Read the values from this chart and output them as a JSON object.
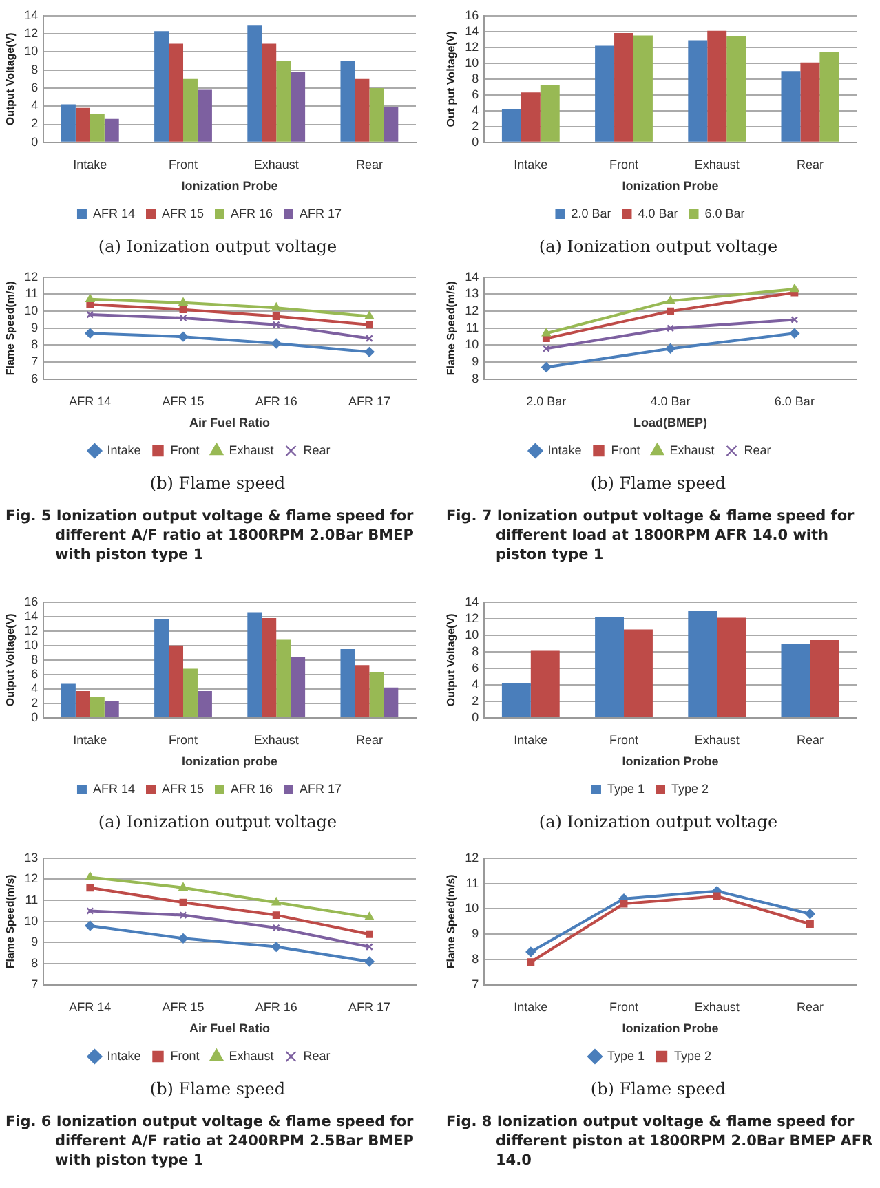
{
  "chart_data": [
    {
      "type": "bar",
      "categories": [
        "Intake",
        "Front",
        "Exhaust",
        "Rear"
      ],
      "xlabel": "Ionization Probe",
      "ylabel": "Output Voltage(V)",
      "ylim": [
        0,
        14
      ],
      "yticks": [
        0,
        2,
        4,
        6,
        8,
        10,
        12,
        14
      ],
      "grid": "y",
      "legend": "bottom",
      "series": [
        {
          "name": "AFR 14",
          "color": "#4a7ebb",
          "values": [
            4.2,
            12.3,
            12.9,
            9.0
          ]
        },
        {
          "name": "AFR 15",
          "color": "#be4b48",
          "values": [
            3.8,
            10.9,
            10.9,
            7.0
          ]
        },
        {
          "name": "AFR 16",
          "color": "#98b954",
          "values": [
            3.1,
            7.0,
            9.0,
            6.0
          ]
        },
        {
          "name": "AFR 17",
          "color": "#7d60a0",
          "values": [
            2.6,
            5.8,
            7.8,
            3.9
          ]
        }
      ],
      "annotations": [
        "(a) Ionization output voltage"
      ]
    },
    {
      "type": "bar",
      "categories": [
        "Intake",
        "Front",
        "Exhaust",
        "Rear"
      ],
      "xlabel": "Ionization Probe",
      "ylabel": "Out put Voltage(V)",
      "ylim": [
        0,
        16
      ],
      "yticks": [
        0,
        2,
        4,
        6,
        8,
        10,
        12,
        14,
        16
      ],
      "grid": "y",
      "legend": "bottom",
      "series": [
        {
          "name": "2.0 Bar",
          "color": "#4a7ebb",
          "values": [
            4.2,
            12.2,
            12.9,
            9.0
          ]
        },
        {
          "name": "4.0 Bar",
          "color": "#be4b48",
          "values": [
            6.3,
            13.8,
            14.1,
            10.1
          ]
        },
        {
          "name": "6.0 Bar",
          "color": "#98b954",
          "values": [
            7.2,
            13.5,
            13.4,
            11.4
          ]
        }
      ],
      "annotations": [
        "(a) Ionization output voltage"
      ]
    },
    {
      "type": "line",
      "categories": [
        "AFR 14",
        "AFR 15",
        "AFR 16",
        "AFR 17"
      ],
      "xlabel": "Air Fuel Ratio",
      "ylabel": "Flame Speed(m/s)",
      "ylim": [
        6,
        12
      ],
      "yticks": [
        6,
        7,
        8,
        9,
        10,
        11,
        12
      ],
      "grid": "y",
      "legend": "bottom",
      "series": [
        {
          "name": "Intake",
          "color": "#4a7ebb",
          "marker": "diamond",
          "values": [
            8.7,
            8.5,
            8.1,
            7.6
          ]
        },
        {
          "name": "Front",
          "color": "#be4b48",
          "marker": "square",
          "values": [
            10.4,
            10.1,
            9.7,
            9.2
          ]
        },
        {
          "name": "Exhaust",
          "color": "#98b954",
          "marker": "triangle",
          "values": [
            10.7,
            10.5,
            10.2,
            9.7
          ]
        },
        {
          "name": "Rear",
          "color": "#7d60a0",
          "marker": "cross",
          "values": [
            9.8,
            9.6,
            9.2,
            8.4
          ]
        }
      ],
      "annotations": [
        "(b) Flame speed",
        "Fig. 5 Ionization output voltage & flame speed for different A/F ratio at 1800RPM 2.0Bar BMEP with piston type 1"
      ]
    },
    {
      "type": "line",
      "categories": [
        "2.0 Bar",
        "4.0 Bar",
        "6.0 Bar"
      ],
      "xlabel": "Load(BMEP)",
      "ylabel": "Flame Speed(m/s)",
      "ylim": [
        8,
        14
      ],
      "yticks": [
        8,
        9,
        10,
        11,
        12,
        13,
        14
      ],
      "grid": "y",
      "legend": "bottom",
      "series": [
        {
          "name": "Intake",
          "color": "#4a7ebb",
          "marker": "diamond",
          "values": [
            8.7,
            9.8,
            10.7
          ]
        },
        {
          "name": "Front",
          "color": "#be4b48",
          "marker": "square",
          "values": [
            10.4,
            12.0,
            13.1
          ]
        },
        {
          "name": "Exhaust",
          "color": "#98b954",
          "marker": "triangle",
          "values": [
            10.7,
            12.6,
            13.3
          ]
        },
        {
          "name": "Rear",
          "color": "#7d60a0",
          "marker": "cross",
          "values": [
            9.8,
            11.0,
            11.5
          ]
        }
      ],
      "annotations": [
        "(b) Flame speed",
        "Fig. 7 Ionization output voltage & flame speed for different load at 1800RPM AFR 14.0 with piston type 1"
      ]
    },
    {
      "type": "bar",
      "categories": [
        "Intake",
        "Front",
        "Exhaust",
        "Rear"
      ],
      "xlabel": "Ionization probe",
      "ylabel": "Output Voltage(V)",
      "ylim": [
        0,
        16
      ],
      "yticks": [
        0,
        2,
        4,
        6,
        8,
        10,
        12,
        14,
        16
      ],
      "grid": "y",
      "legend": "bottom",
      "series": [
        {
          "name": "AFR 14",
          "color": "#4a7ebb",
          "values": [
            4.7,
            13.6,
            14.6,
            9.5
          ]
        },
        {
          "name": "AFR 15",
          "color": "#be4b48",
          "values": [
            3.7,
            10.0,
            13.8,
            7.3
          ]
        },
        {
          "name": "AFR 16",
          "color": "#98b954",
          "values": [
            2.9,
            6.8,
            10.8,
            6.3
          ]
        },
        {
          "name": "AFR 17",
          "color": "#7d60a0",
          "values": [
            2.3,
            3.7,
            8.4,
            4.2
          ]
        }
      ],
      "annotations": [
        "(a) Ionization output voltage"
      ]
    },
    {
      "type": "bar",
      "categories": [
        "Intake",
        "Front",
        "Exhaust",
        "Rear"
      ],
      "xlabel": "Ionization Probe",
      "ylabel": "Output Voltage(V)",
      "ylim": [
        0,
        14
      ],
      "yticks": [
        0,
        2,
        4,
        6,
        8,
        10,
        12,
        14
      ],
      "grid": "y",
      "legend": "bottom",
      "series": [
        {
          "name": "Type 1",
          "color": "#4a7ebb",
          "values": [
            4.2,
            12.2,
            12.9,
            8.9
          ]
        },
        {
          "name": "Type 2",
          "color": "#be4b48",
          "values": [
            8.1,
            10.7,
            12.1,
            9.4
          ]
        }
      ],
      "annotations": [
        "(a) Ionization output voltage"
      ]
    },
    {
      "type": "line",
      "categories": [
        "AFR 14",
        "AFR 15",
        "AFR 16",
        "AFR 17"
      ],
      "xlabel": "Air Fuel Ratio",
      "ylabel": "Flame Speed(m/s)",
      "ylim": [
        7,
        13
      ],
      "yticks": [
        7,
        8,
        9,
        10,
        11,
        12,
        13
      ],
      "grid": "y",
      "legend": "bottom",
      "series": [
        {
          "name": "Intake",
          "color": "#4a7ebb",
          "marker": "diamond",
          "values": [
            9.8,
            9.2,
            8.8,
            8.1
          ]
        },
        {
          "name": "Front",
          "color": "#be4b48",
          "marker": "square",
          "values": [
            11.6,
            10.9,
            10.3,
            9.4
          ]
        },
        {
          "name": "Exhaust",
          "color": "#98b954",
          "marker": "triangle",
          "values": [
            12.1,
            11.6,
            10.9,
            10.2
          ]
        },
        {
          "name": "Rear",
          "color": "#7d60a0",
          "marker": "cross",
          "values": [
            10.5,
            10.3,
            9.7,
            8.8
          ]
        }
      ],
      "annotations": [
        "(b) Flame speed",
        "Fig. 6 Ionization output voltage & flame speed for different A/F ratio at 2400RPM 2.5Bar BMEP with piston type 1"
      ]
    },
    {
      "type": "line",
      "categories": [
        "Intake",
        "Front",
        "Exhaust",
        "Rear"
      ],
      "xlabel": "Ionization Probe",
      "ylabel": "Flame Speed(m/s)",
      "ylim": [
        7,
        12
      ],
      "yticks": [
        7,
        8,
        9,
        10,
        11,
        12
      ],
      "grid": "y",
      "legend": "bottom",
      "series": [
        {
          "name": "Type 1",
          "color": "#4a7ebb",
          "marker": "diamond",
          "values": [
            8.3,
            10.4,
            10.7,
            9.8
          ]
        },
        {
          "name": "Type 2",
          "color": "#be4b48",
          "marker": "square",
          "values": [
            7.9,
            10.2,
            10.5,
            9.4
          ]
        }
      ],
      "annotations": [
        "(b) Flame speed",
        "Fig. 8 Ionization output voltage & flame speed for different piston at 1800RPM 2.0Bar BMEP AFR 14.0"
      ]
    }
  ]
}
